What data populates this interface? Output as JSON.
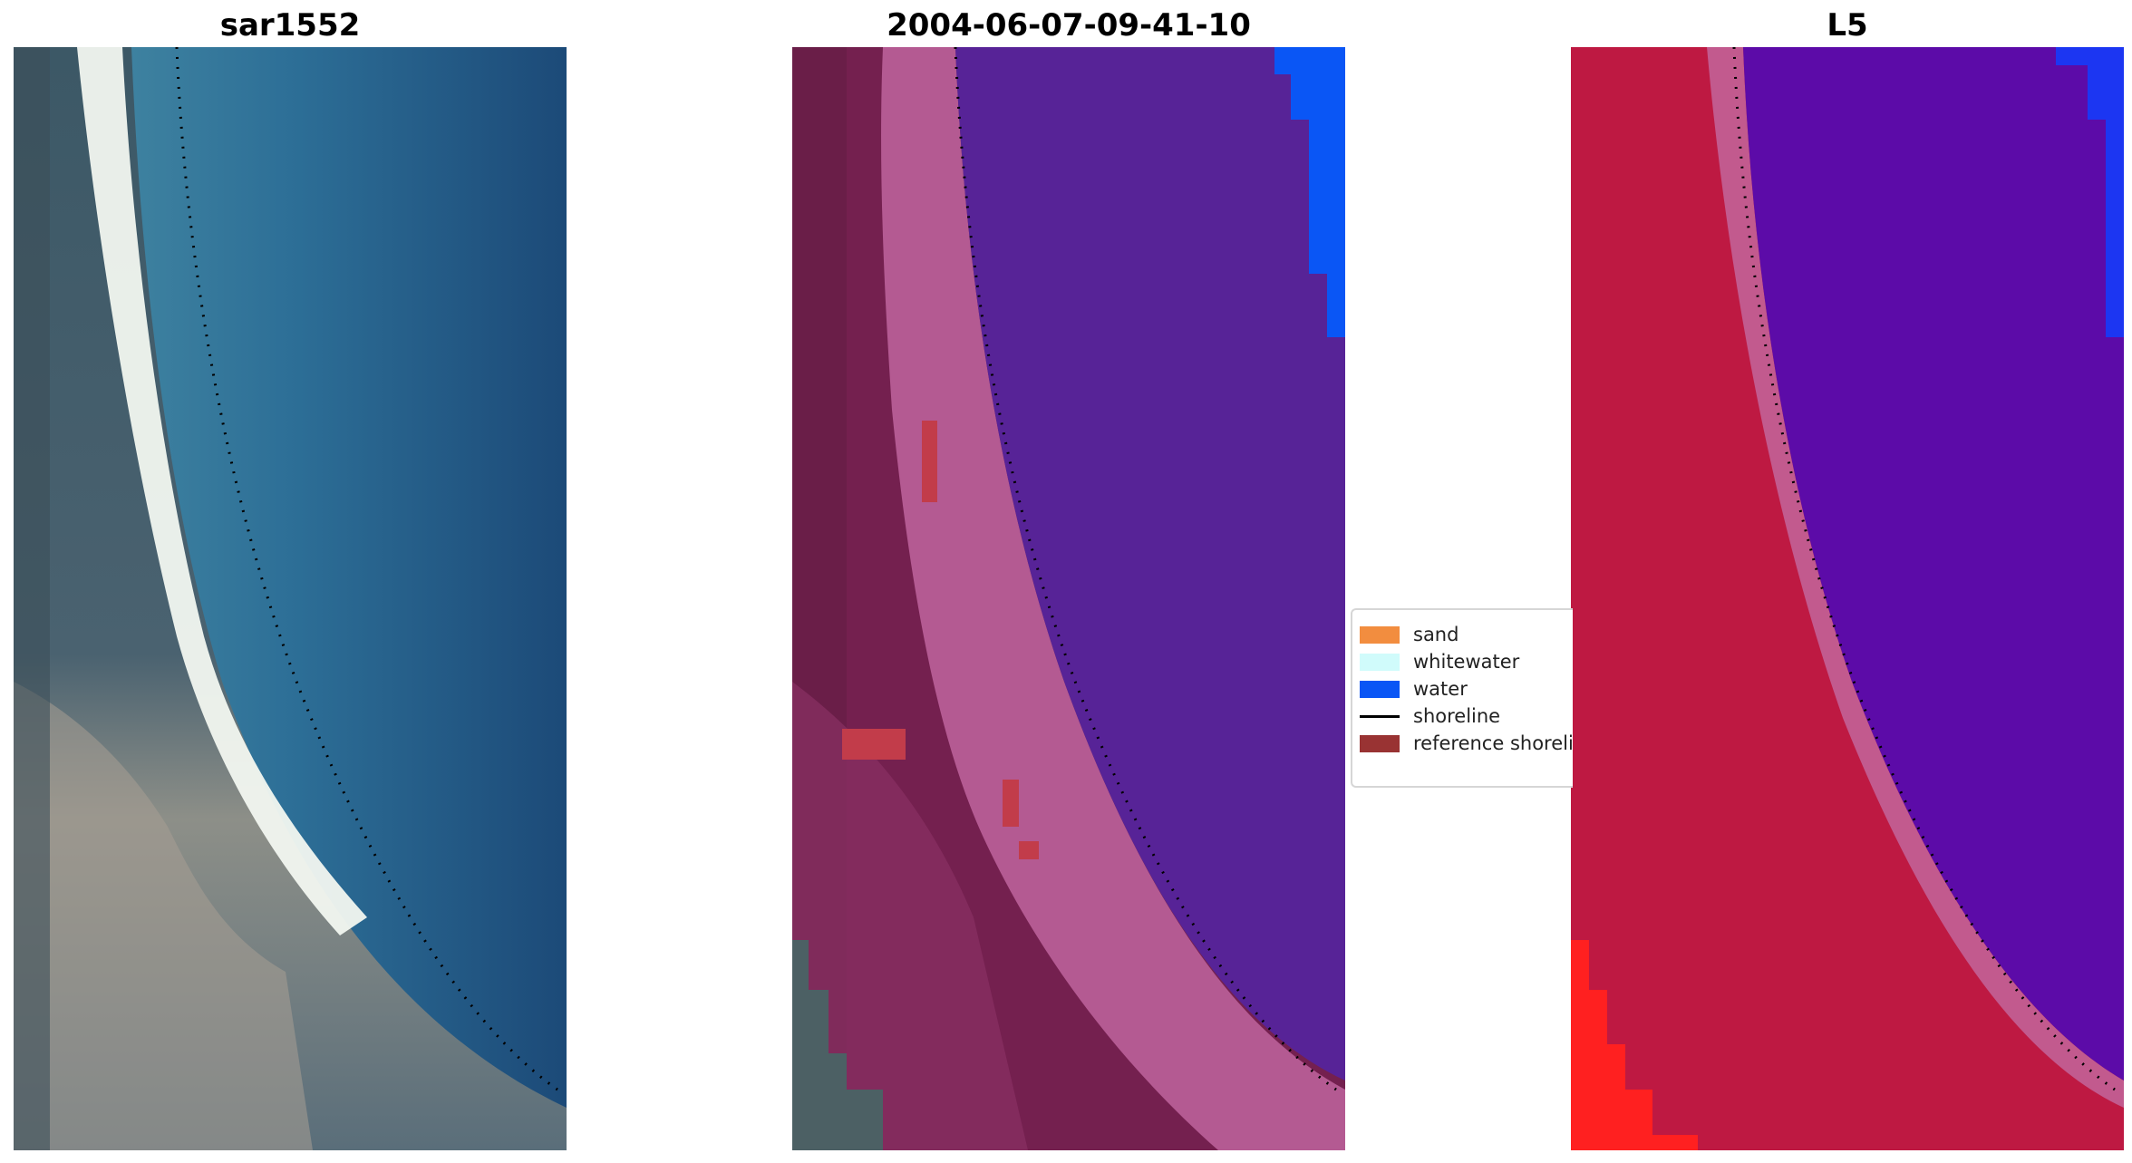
{
  "panels": [
    {
      "title": "sar1552",
      "kind": "satellite-rgb"
    },
    {
      "title": "2004-06-07-09-41-10",
      "kind": "classified-overlay"
    },
    {
      "title": "L5",
      "kind": "false-color"
    }
  ],
  "legend": {
    "entries": [
      {
        "label": "sand",
        "type": "patch",
        "color": "#f28d3f"
      },
      {
        "label": "whitewater",
        "type": "patch",
        "color": "#d0fbfb"
      },
      {
        "label": "water",
        "type": "patch",
        "color": "#0a56f5"
      },
      {
        "label": "shoreline",
        "type": "line",
        "color": "#000000"
      },
      {
        "label": "reference shoreline",
        "type": "patch",
        "color": "#993333"
      }
    ]
  },
  "colors": {
    "water_deep": "#1c4a78",
    "water_mid": "#2f7196",
    "surf": "#f2f7f0",
    "land_dark": "#3a4e5a",
    "classified_water": "#572397",
    "classified_land": "#74204f",
    "classified_beach": "#b45a92",
    "l5_land": "#c5163f",
    "l5_water": "#5c0ba8",
    "l5_bright_red": "#ff2020",
    "shoreline_dots": "#000000"
  }
}
